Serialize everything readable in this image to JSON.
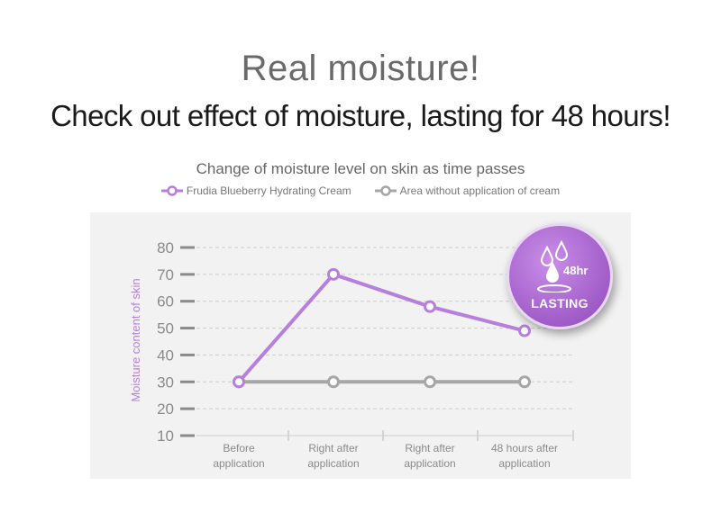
{
  "header": {
    "title": "Real moisture!",
    "subtitle": "Check out effect of moisture, lasting for 48 hours!"
  },
  "badge": {
    "hours": "48hr",
    "label": "LASTING",
    "icon": "water-drops-icon"
  },
  "colors": {
    "cream": "#b67fdc",
    "control": "#a6a6a6",
    "badge": "#a35ccd"
  },
  "chart_data": {
    "type": "line",
    "title": "Change of moisture level on skin as time passes",
    "ylabel": "Moisture content of skin",
    "xlabel": "",
    "categories": [
      [
        "Before",
        "application"
      ],
      [
        "Right after",
        "application"
      ],
      [
        "Right after",
        "application"
      ],
      [
        "48 hours after",
        "application"
      ]
    ],
    "yticks": [
      10,
      20,
      30,
      40,
      50,
      60,
      70,
      80
    ],
    "ylim": [
      10,
      80
    ],
    "grid": true,
    "legend_position": "top-center",
    "series": [
      {
        "name": "Frudia Blueberry Hydrating Cream",
        "values": [
          30,
          70,
          58,
          49
        ],
        "color": "#b67fdc"
      },
      {
        "name": "Area without application of cream",
        "values": [
          30,
          30,
          30,
          30
        ],
        "color": "#a6a6a6"
      }
    ]
  }
}
